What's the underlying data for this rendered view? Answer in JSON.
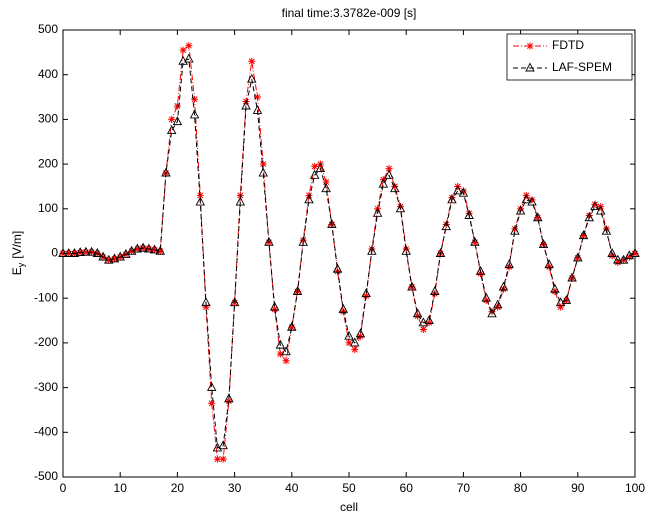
{
  "chart_data": {
    "type": "line",
    "title": "final time:3.3782e-009 [s]",
    "xlabel": "cell",
    "ylabel_symbol": "E",
    "ylabel_subscript": "y",
    "ylabel_unit": "[V/m]",
    "x": [
      0,
      1,
      2,
      3,
      4,
      5,
      6,
      7,
      8,
      9,
      10,
      11,
      12,
      13,
      14,
      15,
      16,
      17,
      18,
      19,
      20,
      21,
      22,
      23,
      24,
      25,
      26,
      27,
      28,
      29,
      30,
      31,
      32,
      33,
      34,
      35,
      36,
      37,
      38,
      39,
      40,
      41,
      42,
      43,
      44,
      45,
      46,
      47,
      48,
      49,
      50,
      51,
      52,
      53,
      54,
      55,
      56,
      57,
      58,
      59,
      60,
      61,
      62,
      63,
      64,
      65,
      66,
      67,
      68,
      69,
      70,
      71,
      72,
      73,
      74,
      75,
      76,
      77,
      78,
      79,
      80,
      81,
      82,
      83,
      84,
      85,
      86,
      87,
      88,
      89,
      90,
      91,
      92,
      93,
      94,
      95,
      96,
      97,
      98,
      99,
      100
    ],
    "series": [
      {
        "name": "FDTD",
        "color": "#ff0000",
        "marker": "star",
        "values": [
          0,
          0,
          0,
          2,
          3,
          3,
          0,
          -8,
          -15,
          -12,
          -8,
          -2,
          5,
          10,
          12,
          10,
          8,
          5,
          180,
          300,
          330,
          455,
          465,
          345,
          130,
          -120,
          -335,
          -460,
          -460,
          -330,
          -110,
          130,
          340,
          430,
          350,
          200,
          25,
          -125,
          -225,
          -240,
          -165,
          -85,
          30,
          130,
          195,
          200,
          160,
          65,
          -40,
          -130,
          -200,
          -215,
          -185,
          -95,
          10,
          100,
          165,
          190,
          150,
          105,
          10,
          -75,
          -140,
          -170,
          -155,
          -90,
          0,
          65,
          125,
          150,
          140,
          90,
          25,
          -45,
          -105,
          -130,
          -120,
          -80,
          -30,
          55,
          100,
          130,
          120,
          80,
          20,
          -30,
          -85,
          -120,
          -105,
          -55,
          -10,
          40,
          85,
          110,
          105,
          55,
          -5,
          -20,
          -15,
          -8,
          0
        ]
      },
      {
        "name": "LAF-SPEM",
        "color": "#000000",
        "marker": "triangle",
        "values": [
          0,
          0,
          0,
          2,
          3,
          3,
          0,
          -8,
          -15,
          -12,
          -8,
          -2,
          5,
          10,
          12,
          10,
          8,
          5,
          180,
          275,
          295,
          430,
          435,
          310,
          115,
          -110,
          -300,
          -435,
          -430,
          -325,
          -110,
          115,
          330,
          390,
          320,
          180,
          25,
          -120,
          -205,
          -220,
          -165,
          -85,
          25,
          120,
          175,
          190,
          145,
          65,
          -35,
          -125,
          -185,
          -200,
          -180,
          -90,
          5,
          90,
          155,
          175,
          145,
          100,
          5,
          -75,
          -135,
          -155,
          -150,
          -85,
          0,
          60,
          120,
          140,
          135,
          85,
          25,
          -40,
          -100,
          -135,
          -115,
          -75,
          -25,
          50,
          95,
          120,
          115,
          80,
          20,
          -25,
          -80,
          -110,
          -105,
          -55,
          -10,
          40,
          80,
          105,
          95,
          50,
          0,
          -15,
          -15,
          -5,
          0
        ]
      }
    ],
    "xlim": [
      0,
      100
    ],
    "xticks": [
      0,
      10,
      20,
      30,
      40,
      50,
      60,
      70,
      80,
      90,
      100
    ],
    "ylim": [
      -500,
      500
    ],
    "yticks": [
      -500,
      -400,
      -300,
      -200,
      -100,
      0,
      100,
      200,
      300,
      400,
      500
    ],
    "grid": false,
    "legend": "northeast"
  }
}
